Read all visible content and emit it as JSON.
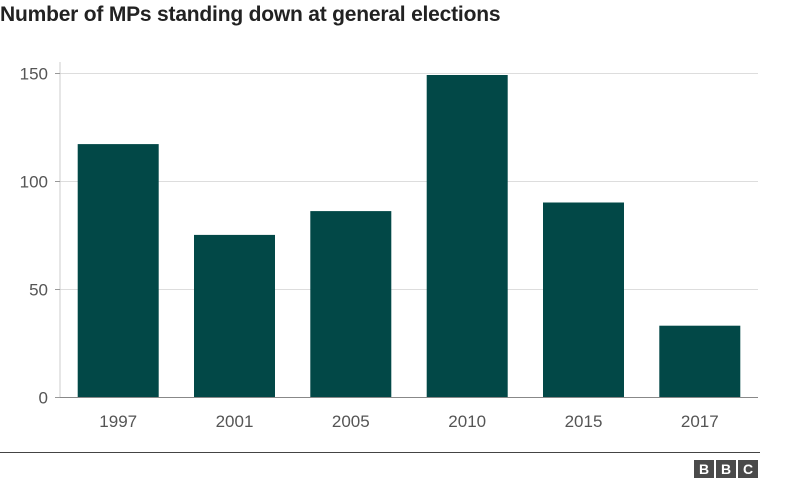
{
  "chart_data": {
    "type": "bar",
    "title": "Number of MPs standing down at general elections",
    "xlabel": "",
    "ylabel": "",
    "categories": [
      "1997",
      "2001",
      "2005",
      "2010",
      "2015",
      "2017"
    ],
    "values": [
      117,
      75,
      86,
      149,
      90,
      33
    ],
    "ylim": [
      0,
      155
    ],
    "yticks": [
      0,
      50,
      100,
      150
    ],
    "grid": true,
    "legend": "none",
    "bar_color": "#024847"
  },
  "branding": {
    "logo_letters": [
      "B",
      "B",
      "C"
    ]
  }
}
